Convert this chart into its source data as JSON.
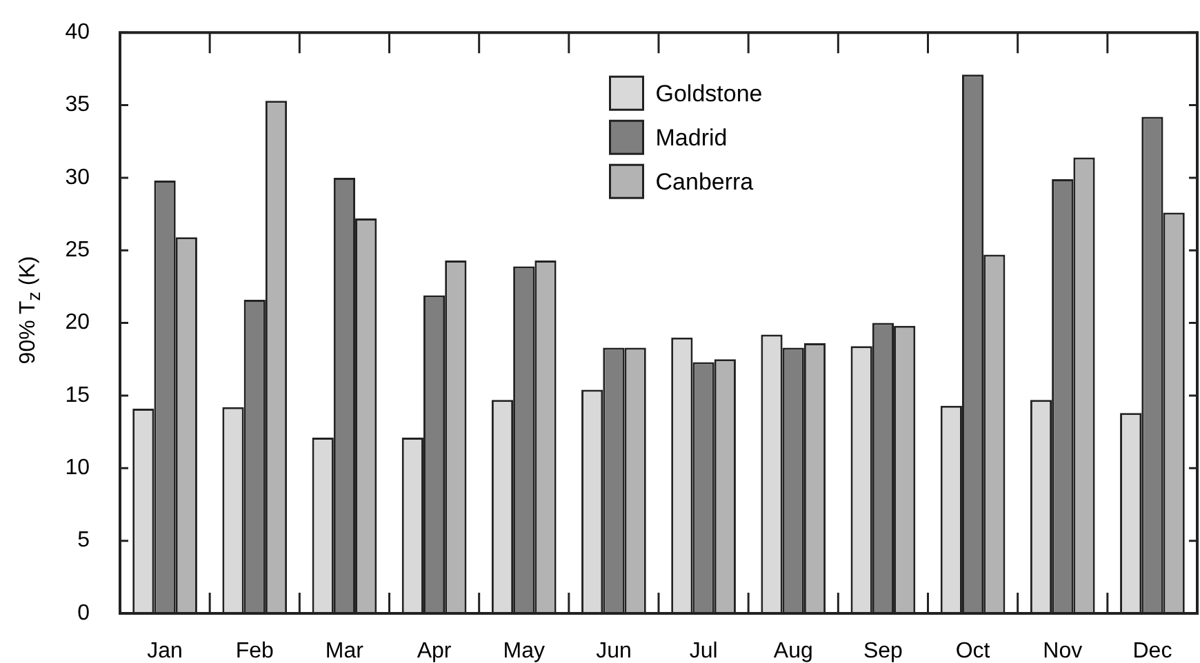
{
  "chart_data": {
    "type": "bar",
    "ylabel": "90% T$_{z}$ (K)",
    "categories": [
      "Jan",
      "Feb",
      "Mar",
      "Apr",
      "May",
      "Jun",
      "Jul",
      "Aug",
      "Sep",
      "Oct",
      "Nov",
      "Dec"
    ],
    "series": [
      {
        "name": "Goldstone",
        "color": "#d9d9d9",
        "values": [
          14.1,
          14.2,
          12.1,
          12.1,
          14.7,
          15.4,
          19.0,
          19.2,
          18.4,
          14.3,
          14.7,
          13.8
        ]
      },
      {
        "name": "Madrid",
        "color": "#7f7f7f",
        "values": [
          29.8,
          21.6,
          30.0,
          21.9,
          23.9,
          18.3,
          17.3,
          18.3,
          20.0,
          37.1,
          29.9,
          34.2
        ]
      },
      {
        "name": "Canberra",
        "color": "#b3b3b3",
        "values": [
          25.9,
          35.3,
          27.2,
          24.3,
          24.3,
          18.3,
          17.5,
          18.6,
          19.8,
          24.7,
          31.4,
          27.6
        ]
      }
    ],
    "ylim": [
      0,
      40
    ],
    "yticks": [
      0,
      5,
      10,
      15,
      20,
      25,
      30,
      35,
      40
    ],
    "legend": "top"
  }
}
